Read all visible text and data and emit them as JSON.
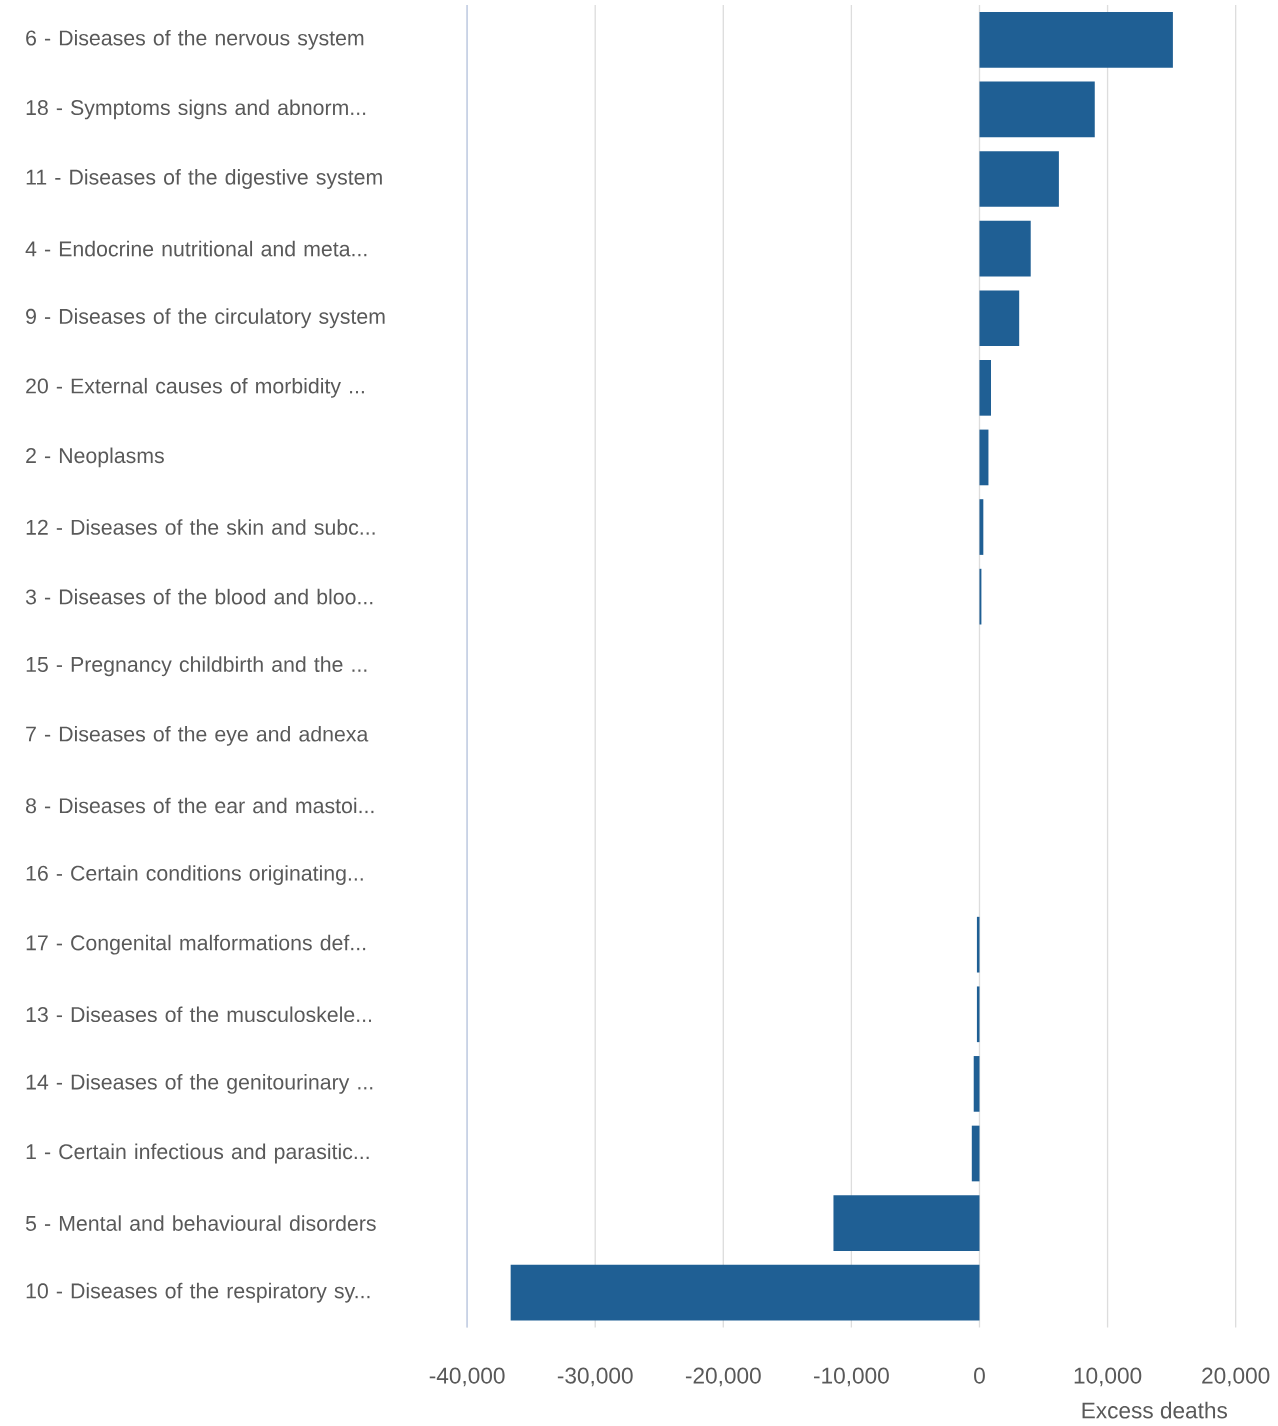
{
  "chart_data": {
    "type": "bar",
    "orientation": "horizontal",
    "xlabel": "Excess deaths",
    "categories": [
      "6 - Diseases of the nervous system",
      "18 - Symptoms signs and abnorm...",
      "11 - Diseases of the digestive system",
      "4 - Endocrine nutritional and meta...",
      "9 - Diseases of the circulatory system",
      "20 - External causes of morbidity ...",
      "2 - Neoplasms",
      "12 - Diseases of the skin and subc...",
      "3 - Diseases of the blood and bloo...",
      "15 - Pregnancy childbirth and the ...",
      "7 - Diseases of the eye and adnexa",
      "8 - Diseases of the ear and mastoi...",
      "16 - Certain conditions originating...",
      "17 - Congenital malformations def...",
      "13 - Diseases of the musculoskele...",
      "14 - Diseases of the genitourinary ...",
      "1 - Certain infectious and parasitic...",
      "5 - Mental and behavioural disorders",
      "10 - Diseases of the respiratory sy..."
    ],
    "values": [
      15100,
      9000,
      6200,
      4000,
      3100,
      900,
      700,
      300,
      150,
      0,
      0,
      0,
      0,
      -200,
      -200,
      -450,
      -600,
      -11400,
      -36600
    ],
    "color": "#1f5f94",
    "xlim": [
      -40000,
      20000
    ],
    "xticks": [
      {
        "value": -40000,
        "label": "-40,000"
      },
      {
        "value": -30000,
        "label": "-30,000"
      },
      {
        "value": -20000,
        "label": "-20,000"
      },
      {
        "value": -10000,
        "label": "-10,000"
      },
      {
        "value": 0,
        "label": "0"
      },
      {
        "value": 10000,
        "label": "10,000"
      },
      {
        "value": 20000,
        "label": "20,000"
      }
    ],
    "grid": "x"
  }
}
